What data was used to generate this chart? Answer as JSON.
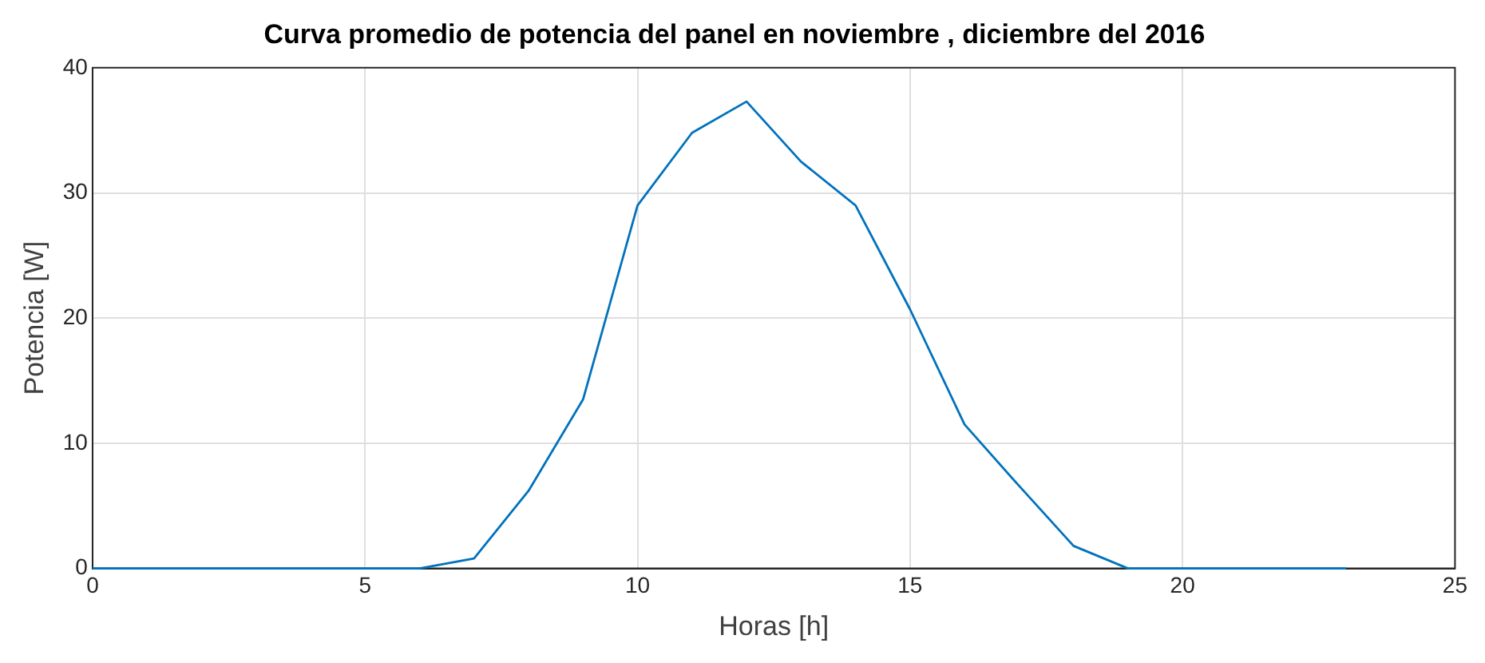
{
  "chart_data": {
    "type": "line",
    "title": "Curva promedio de potencia del panel en noviembre , diciembre del 2016",
    "xlabel": "Horas [h]",
    "ylabel": "Potencia [W]",
    "x": [
      0,
      1,
      2,
      3,
      4,
      5,
      6,
      7,
      8,
      9,
      10,
      11,
      12,
      13,
      14,
      15,
      16,
      17,
      18,
      19,
      20,
      21,
      22,
      23
    ],
    "series": [
      {
        "color": "#0072bd",
        "values": [
          0,
          0,
          0,
          0,
          0,
          0,
          0,
          0.8,
          6.2,
          13.5,
          29.0,
          34.8,
          37.3,
          32.5,
          29.0,
          20.7,
          11.5,
          6.6,
          1.8,
          0,
          0,
          0,
          0,
          0
        ]
      }
    ],
    "xlim": [
      0,
      25
    ],
    "xticks": [
      0,
      5,
      10,
      15,
      20,
      25
    ],
    "ylim": [
      0,
      40
    ],
    "yticks": [
      0,
      10,
      20,
      30,
      40
    ],
    "grid": true,
    "legend": false,
    "marker": "none",
    "line_style": "solid"
  }
}
